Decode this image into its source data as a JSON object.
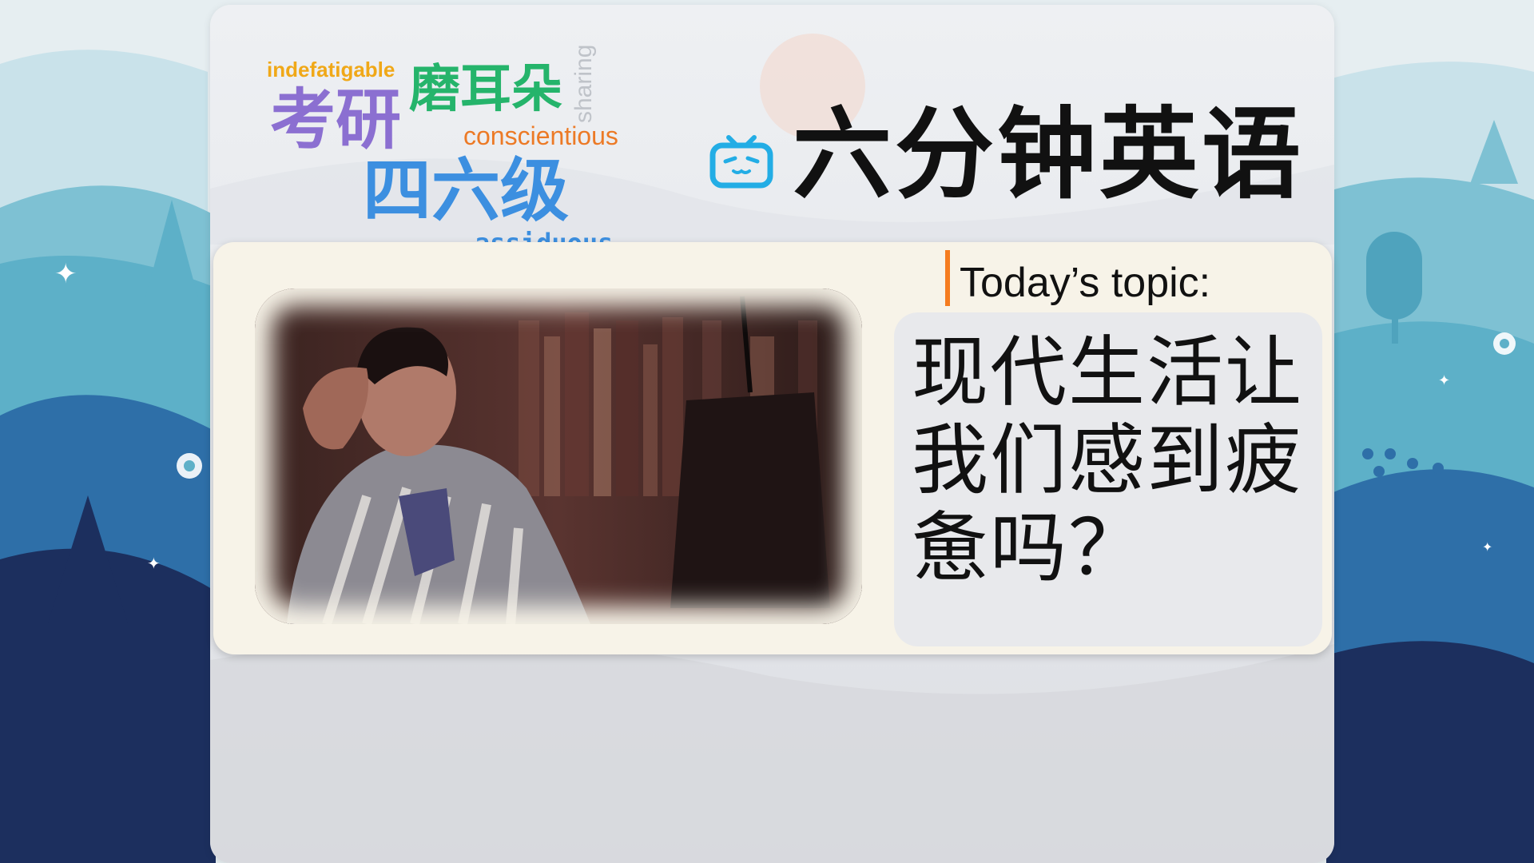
{
  "word_cloud": {
    "indefatigable": "indefatigable",
    "moerduo": "磨耳朵",
    "kaoyan": "考研",
    "conscientious": "conscientious",
    "siliuji": "四六级",
    "assiduous": "assiduous",
    "sharing": "sharing"
  },
  "header": {
    "logo_icon": "bilibili-tv-icon",
    "title": "六分钟英语"
  },
  "topic": {
    "label": "Today’s topic:",
    "text": "现代生活让我们感到疲惫吗？"
  },
  "photo": {
    "subject": "tired-man-in-robe-image"
  },
  "colors": {
    "accent_orange": "#f57c1f",
    "logo_blue": "#23ade5",
    "panel_bg": "#f7f3e8",
    "topic_box_bg": "#e8e9ec"
  }
}
